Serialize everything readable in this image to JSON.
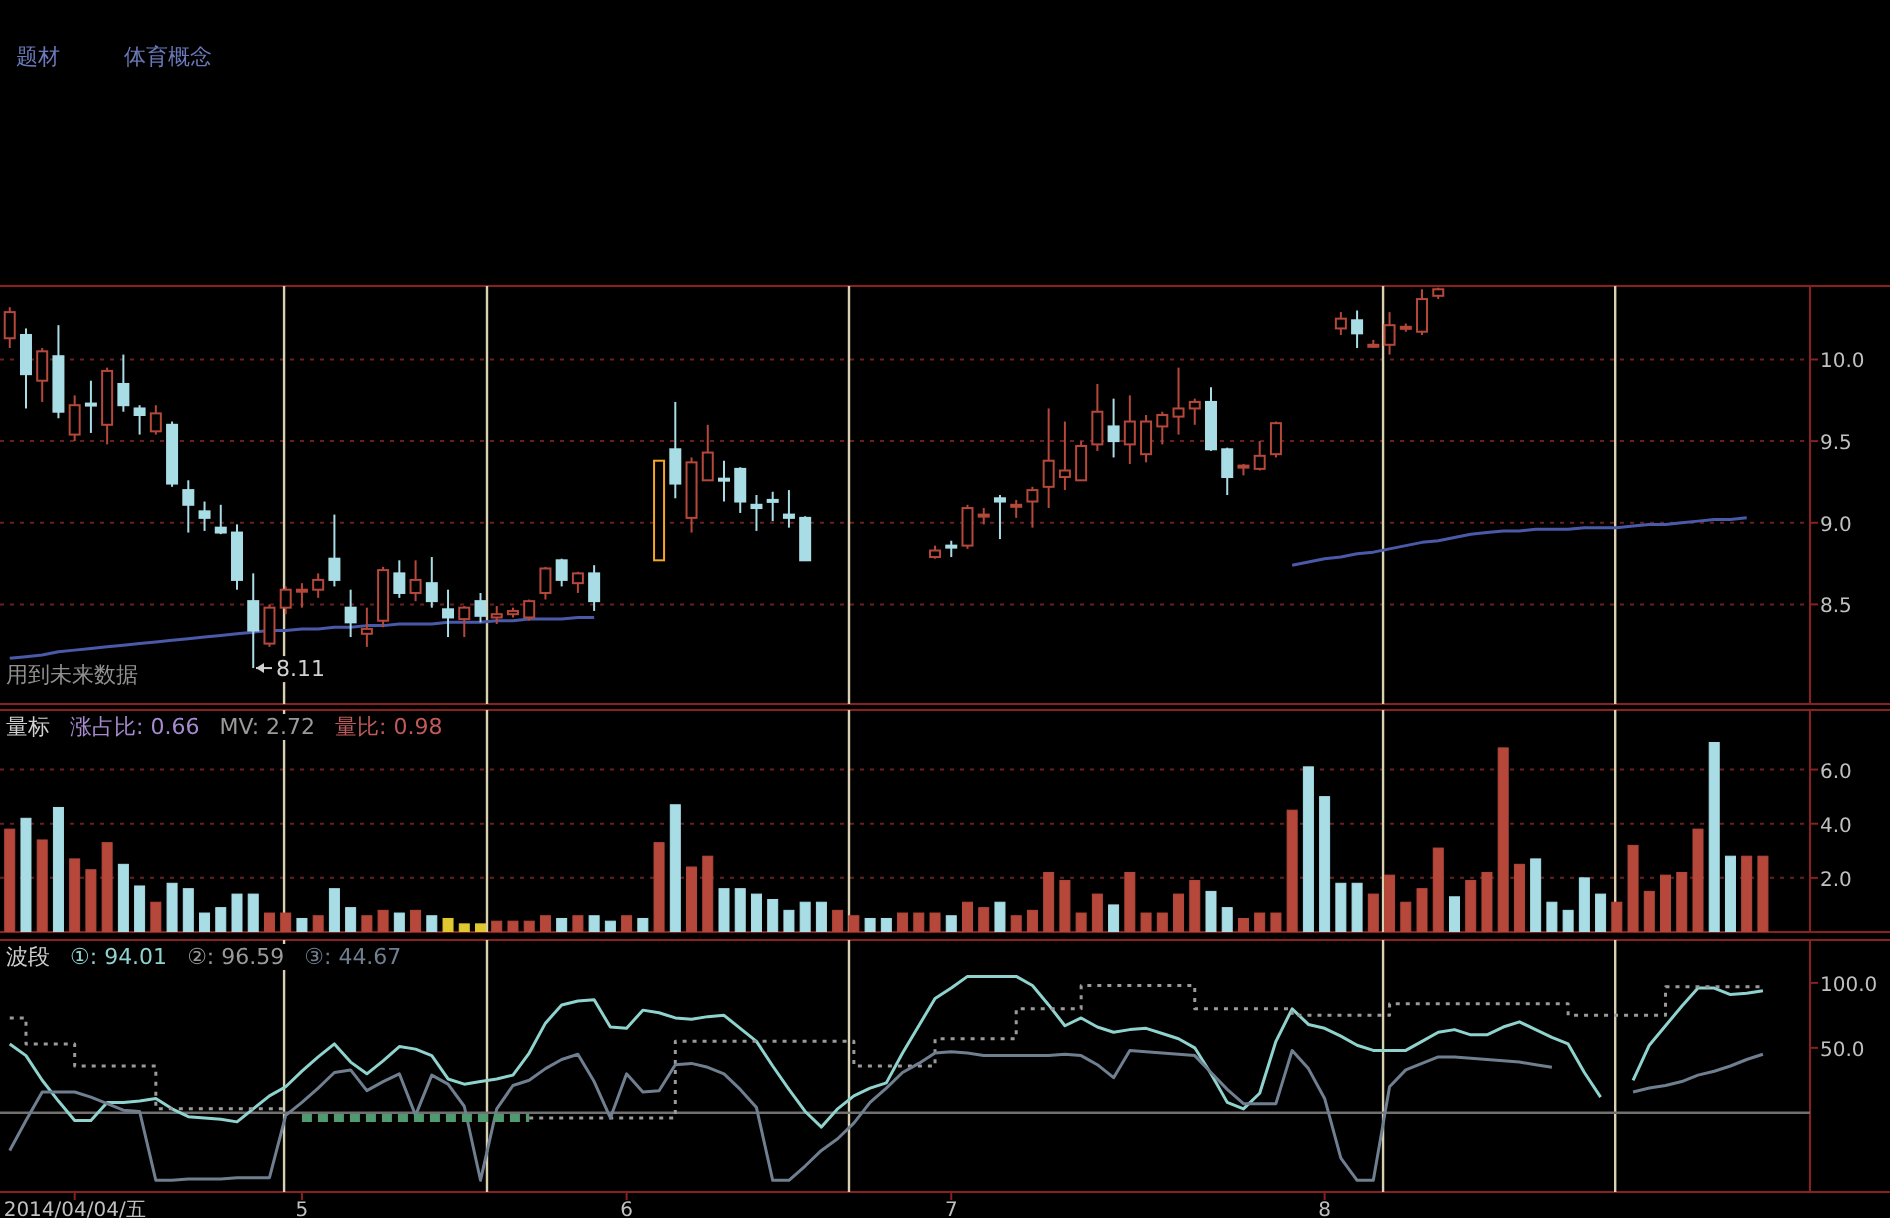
{
  "chart_data": [
    {
      "type": "candlestick",
      "categories": [
        null,
        null,
        null,
        null,
        null,
        null,
        null,
        null,
        null,
        null,
        null,
        null,
        null,
        null,
        null,
        null,
        null,
        null,
        null,
        null,
        null,
        null,
        null,
        null,
        null,
        null,
        null,
        null,
        null,
        null,
        null,
        null,
        null,
        null,
        null,
        null,
        null,
        null,
        null,
        null,
        null,
        null,
        null,
        null,
        null,
        null,
        null,
        null,
        null,
        null,
        null,
        null,
        null,
        null,
        null,
        null,
        null,
        null,
        null,
        null,
        null,
        null,
        null,
        null,
        null,
        null,
        null,
        null,
        null,
        null,
        null,
        null,
        null,
        null,
        null,
        null,
        null,
        null,
        null,
        null,
        null,
        null,
        null,
        null,
        null,
        null,
        null,
        null,
        null,
        null,
        null,
        null,
        null,
        null,
        null,
        null,
        null,
        null,
        null,
        null,
        null,
        null,
        null,
        null,
        null,
        null,
        null,
        null,
        null
      ],
      "ylim": [
        7.89,
        10.45
      ],
      "yticks": [
        8.5,
        {
          "value": 9,
          "label": "9.0"
        },
        9.5,
        {
          "value": 10,
          "label": "10.0"
        }
      ],
      "grid": "y",
      "ohlc": [
        [
          10.13,
          10.32,
          10.07,
          10.29
        ],
        [
          10.15,
          10.19,
          9.7,
          9.91
        ],
        [
          9.87,
          10.07,
          9.74,
          10.05
        ],
        [
          10.02,
          10.21,
          9.64,
          9.68
        ],
        [
          9.54,
          9.78,
          9.5,
          9.72
        ],
        [
          9.73,
          9.87,
          9.55,
          9.72
        ],
        [
          9.6,
          9.95,
          9.48,
          9.93
        ],
        [
          9.85,
          10.03,
          9.68,
          9.72
        ],
        [
          9.7,
          9.72,
          9.54,
          9.66
        ],
        [
          9.56,
          9.72,
          9.54,
          9.67
        ],
        [
          9.6,
          9.62,
          9.22,
          9.24
        ],
        [
          9.2,
          9.26,
          8.94,
          9.11
        ],
        [
          9.07,
          9.13,
          8.95,
          9.03
        ],
        [
          8.97,
          9.11,
          8.93,
          8.94
        ],
        [
          8.94,
          8.99,
          8.59,
          8.65
        ],
        [
          8.52,
          8.69,
          8.11,
          8.34
        ],
        [
          8.26,
          8.5,
          8.24,
          8.48
        ],
        [
          8.48,
          8.61,
          8.44,
          8.59
        ],
        [
          8.58,
          8.63,
          8.48,
          8.59
        ],
        [
          8.59,
          8.69,
          8.54,
          8.65
        ],
        [
          8.78,
          9.05,
          8.61,
          8.65
        ],
        [
          8.48,
          8.59,
          8.3,
          8.39
        ],
        [
          8.32,
          8.48,
          8.24,
          8.35
        ],
        [
          8.4,
          8.73,
          8.36,
          8.71
        ],
        [
          8.69,
          8.77,
          8.54,
          8.57
        ],
        [
          8.57,
          8.77,
          8.52,
          8.65
        ],
        [
          8.63,
          8.79,
          8.48,
          8.52
        ],
        [
          8.47,
          8.59,
          8.3,
          8.42
        ],
        [
          8.41,
          8.49,
          8.3,
          8.48
        ],
        [
          8.52,
          8.57,
          8.39,
          8.43
        ],
        [
          8.42,
          8.49,
          8.38,
          8.44
        ],
        [
          8.44,
          8.48,
          8.42,
          8.46
        ],
        [
          8.42,
          8.53,
          8.4,
          8.52
        ],
        [
          8.57,
          8.73,
          8.53,
          8.72
        ],
        [
          8.77,
          8.78,
          8.61,
          8.65
        ],
        [
          8.63,
          8.7,
          8.57,
          8.69
        ],
        [
          8.69,
          8.74,
          8.46,
          8.52
        ],
        null,
        null,
        null,
        [
          8.77,
          9.38,
          8.77,
          9.38
        ],
        [
          9.45,
          9.74,
          9.15,
          9.24
        ],
        [
          9.03,
          9.4,
          8.94,
          9.37
        ],
        [
          9.26,
          9.6,
          9.26,
          9.43
        ],
        [
          9.27,
          9.38,
          9.13,
          9.26
        ],
        [
          9.33,
          9.34,
          9.06,
          9.13
        ],
        [
          9.11,
          9.17,
          8.95,
          9.09
        ],
        [
          9.14,
          9.19,
          9.01,
          9.13
        ],
        [
          9.05,
          9.2,
          8.97,
          9.03
        ],
        [
          9.03,
          9.04,
          8.77,
          8.77
        ],
        null,
        null,
        null,
        null,
        null,
        null,
        null,
        [
          8.79,
          8.86,
          8.78,
          8.83
        ],
        [
          8.86,
          8.89,
          8.79,
          8.85
        ],
        [
          8.86,
          9.11,
          8.84,
          9.09
        ],
        [
          9.04,
          9.09,
          8.99,
          9.05
        ],
        [
          9.15,
          9.17,
          8.9,
          9.13
        ],
        [
          9.1,
          9.14,
          9.03,
          9.11
        ],
        [
          9.13,
          9.22,
          8.97,
          9.2
        ],
        [
          9.22,
          9.7,
          9.09,
          9.38
        ],
        [
          9.28,
          9.62,
          9.2,
          9.32
        ],
        [
          9.26,
          9.5,
          9.26,
          9.47
        ],
        [
          9.48,
          9.85,
          9.44,
          9.68
        ],
        [
          9.59,
          9.76,
          9.4,
          9.5
        ],
        [
          9.48,
          9.78,
          9.36,
          9.62
        ],
        [
          9.42,
          9.66,
          9.37,
          9.62
        ],
        [
          9.59,
          9.68,
          9.48,
          9.66
        ],
        [
          9.65,
          9.95,
          9.54,
          9.7
        ],
        [
          9.7,
          9.76,
          9.6,
          9.74
        ],
        [
          9.74,
          9.83,
          9.44,
          9.45
        ],
        [
          9.45,
          9.46,
          9.17,
          9.28
        ],
        [
          9.34,
          9.36,
          9.29,
          9.35
        ],
        [
          9.33,
          9.5,
          9.32,
          9.41
        ],
        [
          9.42,
          9.62,
          9.4,
          9.61
        ],
        null,
        null,
        null,
        [
          10.19,
          10.29,
          10.15,
          10.25
        ],
        [
          10.24,
          10.3,
          10.07,
          10.16
        ],
        [
          10.08,
          10.12,
          10.07,
          10.09
        ],
        [
          10.09,
          10.29,
          10.03,
          10.21
        ],
        [
          10.19,
          10.22,
          10.17,
          10.2
        ],
        [
          10.17,
          10.43,
          10.15,
          10.37
        ],
        [
          10.39,
          10.44,
          10.37,
          10.43
        ],
        null,
        null,
        null,
        null,
        null,
        null,
        null,
        null,
        null,
        null,
        null,
        null,
        null,
        null,
        null,
        null,
        null,
        null,
        null,
        null
      ],
      "colors": [
        "#b5483a",
        "#a8dde6",
        "#b5483a",
        "#a8dde6",
        "#b5483a",
        "#a8dde6",
        "#b5483a",
        "#a8dde6",
        "#a8dde6",
        "#b5483a",
        "#a8dde6",
        "#a8dde6",
        "#a8dde6",
        "#a8dde6",
        "#a8dde6",
        "#a8dde6",
        "#b5483a",
        "#b5483a",
        "#b5483a",
        "#b5483a",
        "#a8dde6",
        "#a8dde6",
        "#b5483a",
        "#b5483a",
        "#a8dde6",
        "#b5483a",
        "#a8dde6",
        "#a8dde6",
        "#b5483a",
        "#a8dde6",
        "#b5483a",
        "#b5483a",
        "#b5483a",
        "#b5483a",
        "#a8dde6",
        "#b5483a",
        "#a8dde6",
        null,
        null,
        null,
        "#f5a623",
        "#a8dde6",
        "#b5483a",
        "#b5483a",
        "#a8dde6",
        "#a8dde6",
        "#a8dde6",
        "#a8dde6",
        "#a8dde6",
        "#a8dde6",
        null,
        null,
        null,
        null,
        null,
        null,
        null,
        "#b5483a",
        "#a8dde6",
        "#b5483a",
        "#b5483a",
        "#a8dde6",
        "#b5483a",
        "#b5483a",
        "#b5483a",
        "#b5483a",
        "#b5483a",
        "#b5483a",
        "#a8dde6",
        "#b5483a",
        "#b5483a",
        "#b5483a",
        "#b5483a",
        "#b5483a",
        "#a8dde6",
        "#a8dde6",
        "#b5483a",
        "#b5483a",
        "#b5483a",
        null,
        null,
        null,
        "#b5483a",
        "#a8dde6",
        "#b5483a",
        "#b5483a",
        "#b5483a",
        "#b5483a",
        "#b5483a",
        null,
        null,
        null,
        null,
        null,
        null,
        null,
        null,
        null,
        null,
        null,
        null,
        null,
        null,
        null,
        null,
        null,
        null,
        null,
        null
      ],
      "series": [
        {
          "type": "line",
          "color": "#4a5aa8",
          "values": [
            8.17,
            8.18,
            8.19,
            8.21,
            8.22,
            8.23,
            8.24,
            8.25,
            8.26,
            8.27,
            8.28,
            8.29,
            8.3,
            8.31,
            8.32,
            8.33,
            8.34,
            8.34,
            8.35,
            8.35,
            8.36,
            8.36,
            8.37,
            8.37,
            8.38,
            8.38,
            8.38,
            8.39,
            8.39,
            8.39,
            8.4,
            8.4,
            8.41,
            8.41,
            8.41,
            8.42,
            8.42,
            null,
            null,
            null,
            null,
            null,
            null,
            null,
            null,
            null,
            null,
            null,
            null,
            null,
            null,
            null,
            null,
            null,
            null,
            null,
            null,
            null,
            null,
            null,
            null,
            null,
            null,
            null,
            null,
            null,
            null,
            null,
            null,
            null,
            null,
            null,
            null,
            null,
            null,
            null,
            null,
            null,
            null,
            8.74,
            8.76,
            8.78,
            8.79,
            8.81,
            8.82,
            8.84,
            8.86,
            8.88,
            8.89,
            8.91,
            8.93,
            8.94,
            8.95,
            8.95,
            8.96,
            8.96,
            8.96,
            8.97,
            8.97,
            8.97,
            8.98,
            8.99,
            8.99,
            9.0,
            9.01,
            9.02,
            9.02,
            9.03,
            null
          ]
        }
      ],
      "annotations": [
        "题材",
        "体育概念",
        {
          "text": "8.11",
          "y": 8.11
        },
        "用到未来数据"
      ]
    },
    {
      "type": "bar",
      "title": "量标",
      "categories": [
        null,
        null,
        null,
        null,
        null,
        null,
        null,
        null,
        null,
        null,
        null,
        null,
        null,
        null,
        null,
        null,
        null,
        null,
        null,
        null,
        null,
        null,
        null,
        null,
        null,
        null,
        null,
        null,
        null,
        null,
        null,
        null,
        null,
        null,
        null,
        null,
        null,
        null,
        null,
        null,
        null,
        null,
        null,
        null,
        null,
        null,
        null,
        null,
        null,
        null,
        null,
        null,
        null,
        null,
        null,
        null,
        null,
        null,
        null,
        null,
        null,
        null,
        null,
        null,
        null,
        null,
        null,
        null,
        null,
        null,
        null,
        null,
        null,
        null,
        null,
        null,
        null,
        null,
        null,
        null,
        null,
        null,
        null,
        null,
        null,
        null,
        null,
        null,
        null,
        null,
        null,
        null,
        null,
        null,
        null,
        null,
        null,
        null,
        null,
        null,
        null,
        null,
        null,
        null,
        null,
        null,
        null,
        null,
        null
      ],
      "ylim": [
        0,
        8.2
      ],
      "yticks": [
        {
          "value": 2,
          "label": "2.0"
        },
        {
          "value": 4,
          "label": "4.0"
        },
        {
          "value": 6,
          "label": "6.0"
        }
      ],
      "grid": "y",
      "values": [
        3.8,
        4.2,
        3.4,
        4.6,
        2.7,
        2.3,
        3.3,
        2.5,
        1.7,
        1.1,
        1.8,
        1.6,
        0.7,
        0.9,
        1.4,
        1.4,
        0.7,
        0.7,
        0.5,
        0.6,
        1.6,
        0.9,
        0.6,
        0.8,
        0.7,
        0.8,
        0.6,
        0.5,
        0.3,
        0.3,
        0.4,
        0.4,
        0.4,
        0.6,
        0.5,
        0.6,
        0.6,
        0.4,
        0.6,
        0.5,
        3.3,
        4.7,
        2.4,
        2.8,
        1.6,
        1.6,
        1.4,
        1.2,
        0.8,
        1.1,
        1.1,
        0.8,
        0.6,
        0.5,
        0.5,
        0.7,
        0.7,
        0.7,
        0.6,
        1.1,
        0.9,
        1.1,
        0.6,
        0.8,
        2.2,
        1.9,
        0.7,
        1.4,
        1.0,
        2.2,
        0.7,
        0.7,
        1.4,
        1.9,
        1.5,
        0.9,
        0.5,
        0.7,
        0.7,
        4.5,
        6.1,
        5.0,
        1.8,
        1.8,
        1.4,
        2.1,
        1.1,
        1.6,
        3.1,
        1.3,
        1.9,
        2.2,
        6.8,
        2.5,
        2.7,
        1.1,
        0.8,
        2.0,
        1.4,
        1.1,
        3.2,
        1.5,
        2.1,
        2.2,
        3.8,
        7.0,
        2.8,
        2.8,
        2.8
      ],
      "colors": [
        "#b5483a",
        "#a8dde6",
        "#b5483a",
        "#a8dde6",
        "#b5483a",
        "#b5483a",
        "#b5483a",
        "#a8dde6",
        "#a8dde6",
        "#b5483a",
        "#a8dde6",
        "#a8dde6",
        "#a8dde6",
        "#a8dde6",
        "#a8dde6",
        "#a8dde6",
        "#b5483a",
        "#b5483a",
        "#a8dde6",
        "#b5483a",
        "#a8dde6",
        "#a8dde6",
        "#b5483a",
        "#b5483a",
        "#a8dde6",
        "#b5483a",
        "#a8dde6",
        "#e0c830",
        "#e0c830",
        "#e0c830",
        "#b5483a",
        "#b5483a",
        "#b5483a",
        "#b5483a",
        "#a8dde6",
        "#b5483a",
        "#a8dde6",
        "#a8dde6",
        "#b5483a",
        "#a8dde6",
        "#b5483a",
        "#a8dde6",
        "#b5483a",
        "#b5483a",
        "#a8dde6",
        "#a8dde6",
        "#a8dde6",
        "#a8dde6",
        "#a8dde6",
        "#a8dde6",
        "#a8dde6",
        "#b5483a",
        "#b5483a",
        "#a8dde6",
        "#a8dde6",
        "#b5483a",
        "#b5483a",
        "#b5483a",
        "#a8dde6",
        "#b5483a",
        "#b5483a",
        "#a8dde6",
        "#b5483a",
        "#b5483a",
        "#b5483a",
        "#b5483a",
        "#b5483a",
        "#b5483a",
        "#a8dde6",
        "#b5483a",
        "#b5483a",
        "#b5483a",
        "#b5483a",
        "#b5483a",
        "#a8dde6",
        "#a8dde6",
        "#b5483a",
        "#b5483a",
        "#b5483a",
        "#b5483a",
        "#a8dde6",
        "#a8dde6",
        "#a8dde6",
        "#a8dde6",
        "#b5483a",
        "#b5483a",
        "#b5483a",
        "#b5483a",
        "#b5483a",
        "#a8dde6",
        "#b5483a",
        "#b5483a",
        "#b5483a",
        "#b5483a",
        "#a8dde6",
        "#a8dde6",
        "#a8dde6",
        "#a8dde6",
        "#a8dde6",
        "#b5483a",
        "#b5483a",
        "#b5483a",
        "#b5483a",
        "#b5483a",
        "#b5483a",
        "#a8dde6",
        "#a8dde6",
        "#b5483a",
        "#b5483a"
      ],
      "annotations": [
        "涨占比: 0.66",
        "MV: 2.72",
        "量比: 0.98"
      ]
    },
    {
      "type": "line",
      "title": "波段",
      "categories": [
        null,
        null,
        null,
        null,
        "2014/04/04/五",
        null,
        null,
        null,
        null,
        null,
        null,
        null,
        null,
        null,
        null,
        null,
        null,
        null,
        "5",
        null,
        null,
        null,
        null,
        null,
        null,
        null,
        null,
        null,
        null,
        null,
        null,
        null,
        null,
        null,
        null,
        null,
        null,
        null,
        "6",
        null,
        null,
        null,
        null,
        null,
        null,
        null,
        null,
        null,
        null,
        null,
        null,
        null,
        null,
        null,
        null,
        null,
        null,
        null,
        "7",
        null,
        null,
        null,
        null,
        null,
        null,
        null,
        null,
        null,
        null,
        null,
        null,
        null,
        null,
        null,
        null,
        null,
        null,
        null,
        null,
        null,
        null,
        "8",
        null,
        null,
        null,
        null,
        null,
        null,
        null,
        null,
        null,
        null,
        null,
        null,
        null,
        null,
        null,
        null,
        null,
        null,
        null,
        null,
        null,
        null,
        null,
        null,
        null,
        null,
        null
      ],
      "ylim": [
        -61,
        133
      ],
      "yticks": [
        {
          "value": 50,
          "label": "50.0"
        },
        {
          "value": 100,
          "label": "100.0"
        }
      ],
      "legend": "top left",
      "series": [
        {
          "name": "①: 94.01",
          "color": "#8fd3cf",
          "values": [
            53,
            44,
            25,
            9,
            -6,
            -6,
            8,
            8,
            9,
            11,
            3,
            -3,
            -4,
            -5,
            -7,
            3,
            13,
            20,
            32,
            43,
            53,
            39,
            30,
            40,
            51,
            49,
            44,
            26,
            22,
            24,
            26,
            29,
            46,
            69,
            83,
            86,
            87,
            66,
            65,
            79,
            77,
            73,
            72,
            74,
            75,
            65,
            55,
            36,
            18,
            1,
            -11,
            3,
            13,
            19,
            23,
            46,
            67,
            88,
            96,
            105,
            105,
            105,
            105,
            98,
            83,
            67,
            73,
            66,
            62,
            64,
            65,
            61,
            57,
            50,
            30,
            8,
            3,
            15,
            55,
            80,
            68,
            65,
            59,
            52,
            48,
            48,
            48,
            55,
            62,
            64,
            60,
            60,
            66,
            70,
            64,
            58,
            53,
            31,
            12,
            null,
            25,
            52,
            67,
            82,
            96,
            96,
            91,
            92,
            94
          ]
        },
        {
          "name": "②: 96.59",
          "type": "step",
          "color": "#9a9a9a",
          "line_style": "dotted",
          "values": [
            73,
            73,
            53,
            53,
            53,
            36,
            36,
            36,
            36,
            36,
            3,
            3,
            3,
            3,
            3,
            3,
            3,
            3,
            null,
            null,
            null,
            null,
            null,
            null,
            null,
            null,
            null,
            null,
            null,
            null,
            null,
            null,
            -4,
            -4,
            -4,
            -4,
            -4,
            -4,
            -4,
            -4,
            -4,
            -4,
            55,
            55,
            55,
            55,
            55,
            55,
            55,
            55,
            55,
            55,
            55,
            36,
            36,
            36,
            36,
            36,
            57,
            57,
            57,
            57,
            57,
            80,
            80,
            80,
            80,
            98,
            98,
            98,
            98,
            98,
            98,
            98,
            80,
            80,
            80,
            80,
            80,
            80,
            75,
            75,
            75,
            75,
            75,
            75,
            84,
            84,
            84,
            84,
            84,
            84,
            84,
            84,
            84,
            84,
            84,
            75,
            75,
            75,
            75,
            75,
            75,
            97,
            97,
            97,
            97,
            97,
            97
          ]
        },
        {
          "name": "③: 44.67",
          "color": "#6f7f90",
          "values": [
            -29,
            -6,
            16,
            16,
            16,
            12,
            7,
            2,
            1,
            -52,
            -52,
            -51,
            -51,
            -51,
            -50,
            -50,
            -50,
            -2,
            8,
            19,
            31,
            33,
            17,
            24,
            30,
            -2,
            29,
            22,
            5,
            -52,
            3,
            21,
            25,
            34,
            41,
            45,
            24,
            -4,
            30,
            16,
            17,
            37,
            38,
            35,
            30,
            18,
            4,
            -52,
            -52,
            -41,
            -29,
            -20,
            -8,
            8,
            19,
            31,
            38,
            46,
            47,
            46,
            44,
            44,
            44,
            44,
            44,
            45,
            44,
            37,
            27,
            48,
            47,
            46,
            45,
            44,
            31,
            18,
            7,
            7,
            7,
            48,
            34,
            11,
            -35,
            -52,
            -52,
            20,
            33,
            38,
            43,
            43,
            42,
            41,
            40,
            39,
            37,
            35,
            null,
            null,
            null,
            null,
            16,
            19,
            21,
            24,
            29,
            32,
            36,
            41,
            45
          ]
        },
        {
          "type": "step",
          "color": "#4f9a6e",
          "line_style": "dashed",
          "values": [
            null,
            null,
            null,
            null,
            null,
            null,
            null,
            null,
            null,
            null,
            null,
            null,
            null,
            null,
            null,
            null,
            null,
            null,
            -4,
            -4,
            -4,
            -4,
            -4,
            -4,
            -4,
            -4,
            -4,
            -4,
            -4,
            -4,
            -4,
            -4,
            -4,
            null,
            null,
            null,
            null,
            null,
            null,
            null,
            null,
            null,
            null,
            null,
            null,
            null,
            null,
            null,
            null,
            null,
            null,
            null,
            null,
            null,
            null,
            null,
            null,
            null,
            null,
            null,
            null,
            null,
            null,
            null,
            null,
            null,
            null,
            null,
            null,
            null,
            null,
            null,
            null,
            null,
            null,
            null,
            null,
            null,
            null,
            null,
            null,
            null,
            null,
            null,
            null,
            null,
            null,
            null,
            null,
            null,
            null,
            null,
            null,
            null,
            null,
            null,
            null,
            null,
            null,
            null,
            null,
            null,
            null,
            null,
            null,
            null,
            null,
            null,
            null
          ]
        }
      ],
      "ref_lines": [
        {
          "axis": "y",
          "value": 0,
          "color": "#707070"
        }
      ]
    }
  ]
}
